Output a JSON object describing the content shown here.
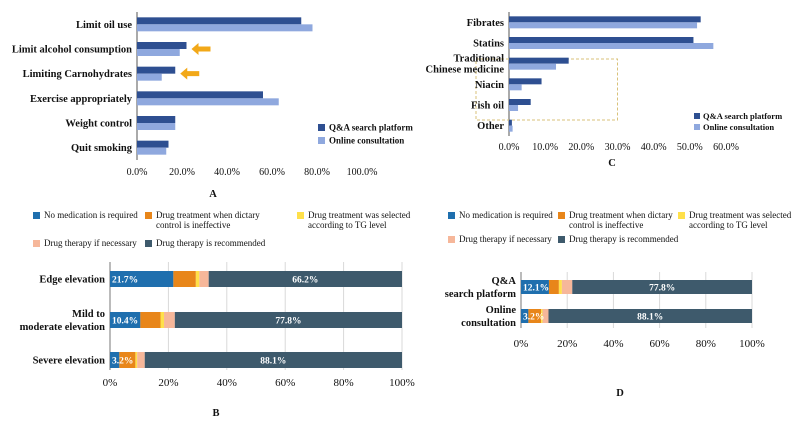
{
  "colors": {
    "qa": "#2e4f91",
    "online": "#8fa8de",
    "no_med": "#1f6fae",
    "ineffective": "#e8861a",
    "tg_level": "#ffe04a",
    "if_necessary": "#f6b79a",
    "recommended": "#3e5a6c",
    "arrow": "#f2a818",
    "grid": "#d9d9d9",
    "dash_box": "#d9c27a"
  },
  "chart_data": [
    {
      "id": "A",
      "type": "bar",
      "orientation": "horizontal",
      "panel_label": "A",
      "categories": [
        "Limit oil use",
        "Limit alcohol consumption",
        "Limiting Carnohydrates",
        "Exercise appropriately",
        "Weight control",
        "Quit smoking"
      ],
      "series": [
        {
          "name": "Q&A search platform",
          "color_key": "qa",
          "values": [
            73,
            22,
            17,
            56,
            17,
            14
          ]
        },
        {
          "name": "Online consultation",
          "color_key": "online",
          "values": [
            78,
            19,
            11,
            63,
            17,
            13
          ]
        }
      ],
      "xlim": [
        0,
        100
      ],
      "xticks": [
        "0.0%",
        "20.0%",
        "40.0%",
        "60.0%",
        "80.0%",
        "100.0%"
      ],
      "legend_position": "bottom-right",
      "annotations": [
        "arrow at Limit alcohol consumption",
        "arrow at Limiting Carnohydrates"
      ]
    },
    {
      "id": "C",
      "type": "bar",
      "orientation": "horizontal",
      "panel_label": "C",
      "categories": [
        "Fibrates",
        "Statins",
        "Traditional Chinese medicine",
        "Niacin",
        "Fish oil",
        "Other"
      ],
      "category_lines": [
        [
          "Fibrates"
        ],
        [
          "Statins"
        ],
        [
          "Traditional",
          "Chinese medicine"
        ],
        [
          "Niacin"
        ],
        [
          "Fish oil"
        ],
        [
          "Other"
        ]
      ],
      "series": [
        {
          "name": "Q&A search platform",
          "color_key": "qa",
          "values": [
            53,
            51,
            16.5,
            9,
            6,
            0.8
          ]
        },
        {
          "name": "Online consultation",
          "color_key": "online",
          "values": [
            52,
            56.5,
            13,
            3.5,
            2.5,
            1
          ]
        }
      ],
      "xlim": [
        0,
        60
      ],
      "xticks": [
        "0.0%",
        "10.0%",
        "20.0%",
        "30.0%",
        "40.0%",
        "50.0%",
        "60.0%"
      ],
      "legend_position": "bottom-right",
      "annotations": [
        "dashed box around Traditional Chinese medicine to Other"
      ]
    },
    {
      "id": "B",
      "type": "bar",
      "orientation": "horizontal",
      "stacked": true,
      "panel_label": "B",
      "categories": [
        "Edge elevation",
        "Mild to moderate elevation",
        "Severe elevation"
      ],
      "category_lines": [
        [
          "Edge elevation"
        ],
        [
          "Mild to",
          "moderate elevation"
        ],
        [
          "Severe elevation"
        ]
      ],
      "legend": [
        {
          "label": "No medication is required",
          "color_key": "no_med"
        },
        {
          "label": "Drug treatment when dictary control is ineffective",
          "color_key": "ineffective"
        },
        {
          "label": "Drug treatment was selected according to TG level",
          "color_key": "tg_level"
        },
        {
          "label": "Drug therapy if necessary",
          "color_key": "if_necessary"
        },
        {
          "label": "Drug therapy is recommended",
          "color_key": "recommended"
        }
      ],
      "legend_lines": [
        [
          "No medication is required"
        ],
        [
          "Drug treatment when dictary",
          "control is ineffective"
        ],
        [
          "Drug treatment was selected",
          "according to TG level"
        ],
        [
          "Drug therapy if necessary"
        ],
        [
          "Drug therapy is recommended"
        ]
      ],
      "series": [
        {
          "name": "No medication is required",
          "color_key": "no_med",
          "values": [
            21.7,
            10.4,
            3.2
          ]
        },
        {
          "name": "Drug treatment when dictary control is ineffective",
          "color_key": "ineffective",
          "values": [
            7.7,
            6.9,
            5.5
          ]
        },
        {
          "name": "Drug treatment was selected according to TG level",
          "color_key": "tg_level",
          "values": [
            1.2,
            1.2,
            0.6
          ]
        },
        {
          "name": "Drug therapy if necessary",
          "color_key": "if_necessary",
          "values": [
            3.2,
            3.7,
            2.6
          ]
        },
        {
          "name": "Drug therapy is recommended",
          "color_key": "recommended",
          "values": [
            66.2,
            77.8,
            88.1
          ]
        }
      ],
      "bar_labels": [
        [
          "21.7%",
          "66.2%"
        ],
        [
          "10.4%",
          "77.8%"
        ],
        [
          "3.2%",
          "88.1%"
        ]
      ],
      "xlim": [
        0,
        100
      ],
      "xticks": [
        "0%",
        "20%",
        "40%",
        "60%",
        "80%",
        "100%"
      ]
    },
    {
      "id": "D",
      "type": "bar",
      "orientation": "horizontal",
      "stacked": true,
      "panel_label": "D",
      "categories": [
        "Q&A search platform",
        "Online consultation"
      ],
      "category_lines": [
        [
          "Q&A",
          "search platform"
        ],
        [
          "Online",
          "consultation"
        ]
      ],
      "legend": [
        {
          "label": "No medication is required",
          "color_key": "no_med"
        },
        {
          "label": "Drug treatment when dictary control is ineffective",
          "color_key": "ineffective"
        },
        {
          "label": "Drug treatment was selected according to TG level",
          "color_key": "tg_level"
        },
        {
          "label": "Drug therapy if necessary",
          "color_key": "if_necessary"
        },
        {
          "label": "Drug therapy is recommended",
          "color_key": "recommended"
        }
      ],
      "legend_lines": [
        [
          "No medication is required"
        ],
        [
          "Drug treatment when dictary",
          "control is ineffective"
        ],
        [
          "Drug treatment was selected",
          "according to TG level"
        ],
        [
          "Drug therapy if necessary"
        ],
        [
          "Drug therapy is recommended"
        ]
      ],
      "series": [
        {
          "name": "No medication is required",
          "color_key": "no_med",
          "values": [
            12.1,
            3.2
          ]
        },
        {
          "name": "Drug treatment when dictary control is ineffective",
          "color_key": "ineffective",
          "values": [
            4.3,
            5.5
          ]
        },
        {
          "name": "Drug treatment was selected according to TG level",
          "color_key": "tg_level",
          "values": [
            1.3,
            0.6
          ]
        },
        {
          "name": "Drug therapy if necessary",
          "color_key": "if_necessary",
          "values": [
            4.5,
            2.6
          ]
        },
        {
          "name": "Drug therapy is recommended",
          "color_key": "recommended",
          "values": [
            77.8,
            88.1
          ]
        }
      ],
      "bar_labels": [
        [
          "12.1%",
          "77.8%"
        ],
        [
          "3.2%",
          "88.1%"
        ]
      ],
      "xlim": [
        0,
        100
      ],
      "xticks": [
        "0%",
        "20%",
        "40%",
        "60%",
        "80%",
        "100%"
      ]
    }
  ]
}
